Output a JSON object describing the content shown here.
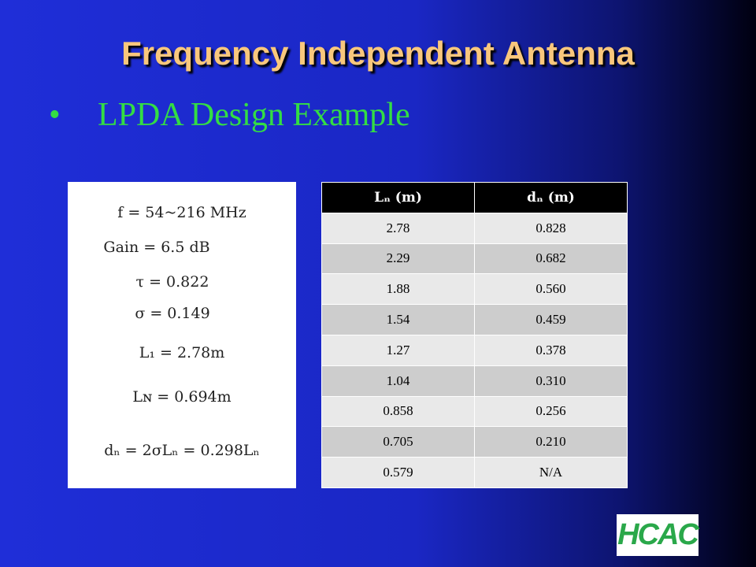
{
  "slide": {
    "title": "Frequency Independent Antenna",
    "bullet": "LPDA Design Example",
    "equations": [
      "f = 54~216 MHz",
      "Gain = 6.5 dB",
      "τ = 0.822",
      "σ = 0.149",
      "L₁ = 2.78m",
      "Lɴ = 0.694m",
      "dₙ = 2σLₙ = 0.298Lₙ"
    ],
    "table": {
      "header": [
        "Lₙ (m)",
        "dₙ (m)"
      ],
      "rows": [
        [
          "2.78",
          "0.828"
        ],
        [
          "2.29",
          "0.682"
        ],
        [
          "1.88",
          "0.560"
        ],
        [
          "1.54",
          "0.459"
        ],
        [
          "1.27",
          "0.378"
        ],
        [
          "1.04",
          "0.310"
        ],
        [
          "0.858",
          "0.256"
        ],
        [
          "0.705",
          "0.210"
        ],
        [
          "0.579",
          "N/A"
        ]
      ]
    },
    "logo": "HCAC"
  }
}
